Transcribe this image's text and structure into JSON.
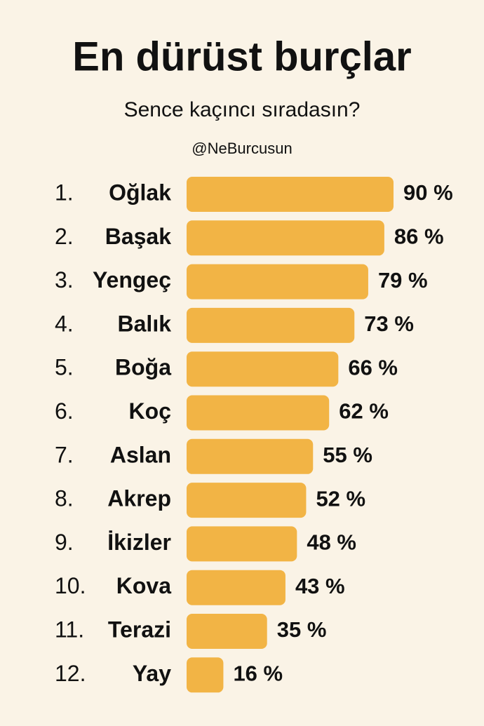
{
  "chart_data": {
    "type": "bar",
    "orientation": "horizontal",
    "title": "En dürüst burçlar",
    "subtitle": "Sence kaçıncı sıradasın?",
    "handle": "@NeBurcusun",
    "ranks": [
      "1.",
      "2.",
      "3.",
      "4.",
      "5.",
      "6.",
      "7.",
      "8.",
      "9.",
      "10.",
      "11.",
      "12."
    ],
    "categories": [
      "Oğlak",
      "Başak",
      "Yengeç",
      "Balık",
      "Boğa",
      "Koç",
      "Aslan",
      "Akrep",
      "İkizler",
      "Kova",
      "Terazi",
      "Yay"
    ],
    "values": [
      90,
      86,
      79,
      73,
      66,
      62,
      55,
      52,
      48,
      43,
      35,
      16
    ],
    "value_labels": [
      "90 %",
      "86 %",
      "79 %",
      "73 %",
      "66 %",
      "62 %",
      "55 %",
      "52 %",
      "48 %",
      "43 %",
      "35 %",
      "16 %"
    ],
    "color": "#f2b445"
  }
}
